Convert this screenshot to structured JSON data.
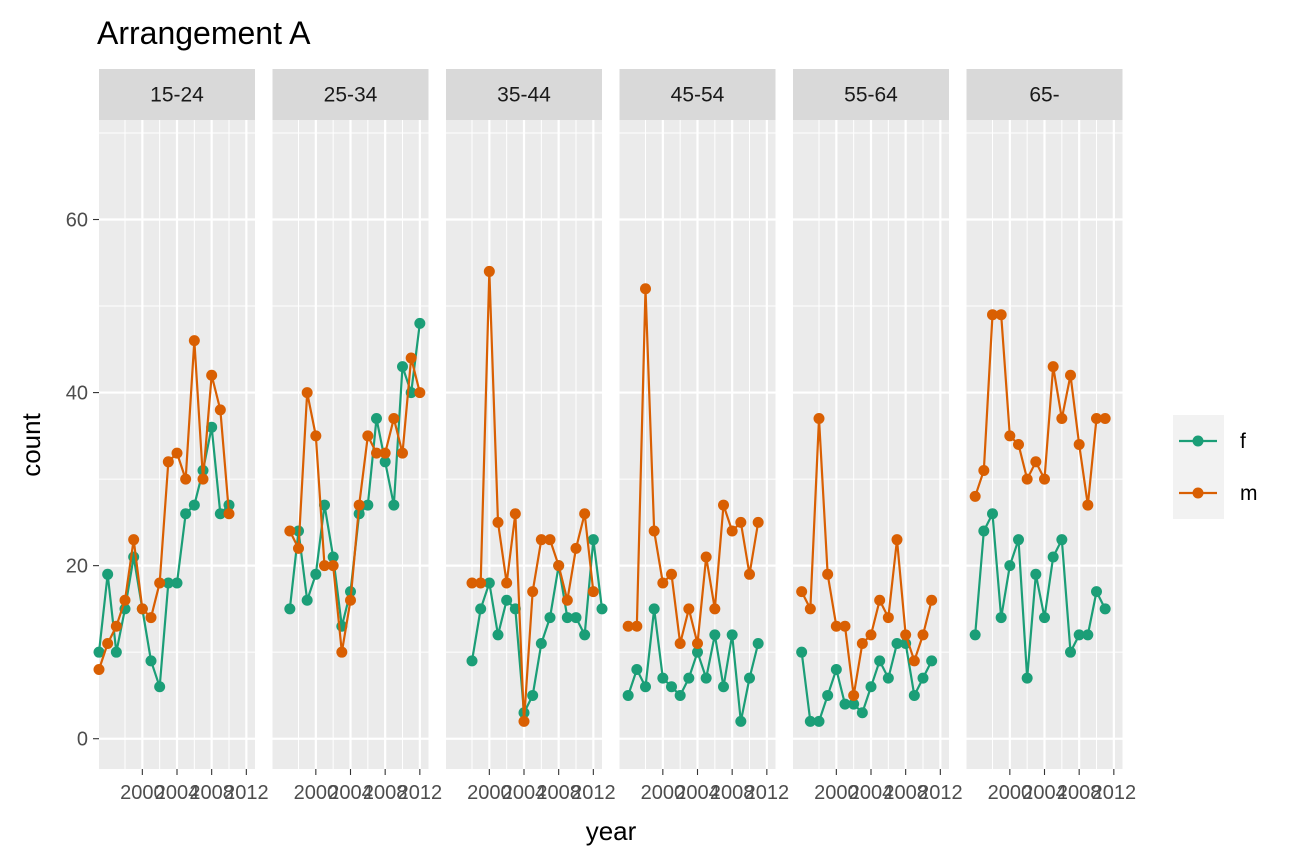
{
  "chart_data": {
    "type": "line",
    "title": "Arrangement A",
    "xlabel": "year",
    "ylabel": "count",
    "xlim": [
      1995,
      2013
    ],
    "ylim": [
      -3.5,
      71.5
    ],
    "x_ticks": [
      2000,
      2004,
      2008,
      2012
    ],
    "x_tick_labels": [
      "2000",
      "2004",
      "2008",
      "2012"
    ],
    "y_ticks": [
      0,
      20,
      40,
      60
    ],
    "y_tick_labels": [
      "0",
      "20",
      "40",
      "60"
    ],
    "grid": true,
    "legend": {
      "position": "right",
      "entries": [
        "f",
        "m"
      ]
    },
    "x": [
      1995,
      1996,
      1997,
      1998,
      1999,
      2000,
      2001,
      2002,
      2003,
      2004,
      2005,
      2006,
      2007,
      2008,
      2009,
      2010,
      2011,
      2012,
      2013
    ],
    "panels": [
      {
        "label": "15-24",
        "series": [
          {
            "name": "f",
            "values": [
              10,
              19,
              10,
              15,
              21,
              15,
              9,
              6,
              18,
              18,
              26,
              27,
              31,
              36,
              26,
              27,
              null,
              null,
              null
            ]
          },
          {
            "name": "m",
            "values": [
              8,
              11,
              13,
              16,
              23,
              15,
              14,
              18,
              32,
              33,
              30,
              46,
              30,
              42,
              38,
              26,
              null,
              null,
              null
            ]
          }
        ]
      },
      {
        "label": "25-34",
        "series": [
          {
            "name": "f",
            "values": [
              null,
              null,
              15,
              24,
              16,
              19,
              27,
              21,
              13,
              17,
              26,
              27,
              37,
              32,
              27,
              43,
              40,
              48,
              null
            ]
          },
          {
            "name": "m",
            "values": [
              null,
              null,
              24,
              22,
              40,
              35,
              20,
              20,
              10,
              16,
              27,
              35,
              33,
              33,
              37,
              33,
              44,
              40,
              null
            ]
          }
        ]
      },
      {
        "label": "35-44",
        "series": [
          {
            "name": "f",
            "values": [
              null,
              null,
              null,
              9,
              15,
              18,
              12,
              16,
              15,
              3,
              5,
              11,
              14,
              20,
              14,
              14,
              12,
              23,
              15
            ]
          },
          {
            "name": "m",
            "values": [
              null,
              null,
              null,
              18,
              18,
              54,
              25,
              18,
              26,
              2,
              17,
              23,
              23,
              20,
              16,
              22,
              26,
              17,
              null
            ]
          }
        ]
      },
      {
        "label": "45-54",
        "series": [
          {
            "name": "f",
            "values": [
              null,
              5,
              8,
              6,
              15,
              7,
              6,
              5,
              7,
              10,
              7,
              12,
              6,
              12,
              2,
              7,
              11,
              null,
              null
            ]
          },
          {
            "name": "m",
            "values": [
              null,
              13,
              13,
              52,
              24,
              18,
              19,
              11,
              15,
              11,
              21,
              15,
              27,
              24,
              25,
              19,
              25,
              null,
              null
            ]
          }
        ]
      },
      {
        "label": "55-64",
        "series": [
          {
            "name": "f",
            "values": [
              null,
              10,
              2,
              2,
              5,
              8,
              4,
              4,
              3,
              6,
              9,
              7,
              11,
              11,
              5,
              7,
              9,
              null,
              null
            ]
          },
          {
            "name": "m",
            "values": [
              null,
              17,
              15,
              37,
              19,
              13,
              13,
              5,
              11,
              12,
              16,
              14,
              23,
              12,
              9,
              12,
              16,
              null,
              null
            ]
          }
        ]
      },
      {
        "label": "65-",
        "series": [
          {
            "name": "f",
            "values": [
              null,
              12,
              24,
              26,
              14,
              20,
              23,
              7,
              19,
              14,
              21,
              23,
              10,
              12,
              12,
              17,
              15,
              null,
              null
            ]
          },
          {
            "name": "m",
            "values": [
              null,
              28,
              31,
              49,
              49,
              35,
              34,
              30,
              32,
              30,
              43,
              37,
              42,
              34,
              27,
              37,
              37,
              null,
              null
            ]
          }
        ]
      }
    ]
  },
  "colors": {
    "f": "#1B9E77",
    "m": "#D95F02",
    "panel_background": "#EBEBEB",
    "strip_background": "#D9D9D9",
    "grid": "#FFFFFF",
    "legend_background": "#F2F2F2"
  }
}
